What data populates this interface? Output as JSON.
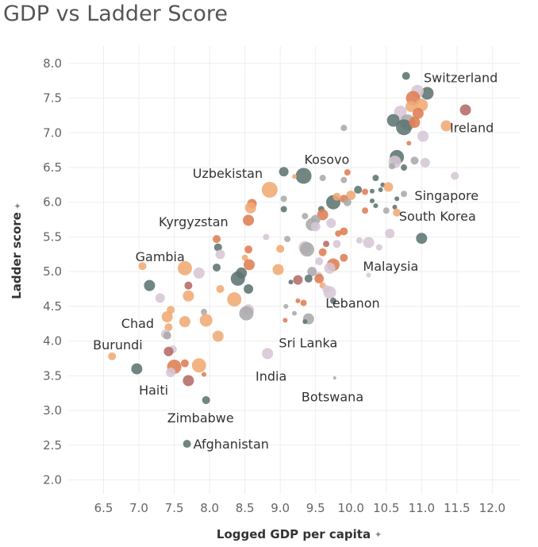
{
  "chart_data": {
    "type": "scatter",
    "title": "GDP vs Ladder Score",
    "xlabel": "Logged GDP per capita",
    "ylabel": "Ladder score",
    "xlim": [
      6.0,
      12.4
    ],
    "ylim": [
      1.8,
      8.25
    ],
    "x_ticks": [
      "6.5",
      "7.0",
      "7.5",
      "8.0",
      "8.5",
      "9.0",
      "9.5",
      "10.0",
      "10.5",
      "11.0",
      "11.5",
      "12.0"
    ],
    "y_ticks": [
      "2.0",
      "2.5",
      "3.0",
      "3.5",
      "4.0",
      "4.5",
      "5.0",
      "5.5",
      "6.0",
      "6.5",
      "7.0",
      "7.5",
      "8.0"
    ],
    "grid": true,
    "colors": {
      "teal": "#5d7472",
      "orange": "#df7d53",
      "peach": "#f0aa73",
      "lilac": "#d6c6d4",
      "grey": "#aaaaaa",
      "rose": "#b56b66"
    },
    "points": [
      {
        "x": 10.78,
        "y": 7.82,
        "s": 5,
        "c": "teal"
      },
      {
        "x": 11.08,
        "y": 7.57,
        "s": 8,
        "c": "teal"
      },
      {
        "x": 10.94,
        "y": 7.6,
        "s": 8,
        "c": "lilac"
      },
      {
        "x": 10.88,
        "y": 7.5,
        "s": 9,
        "c": "orange"
      },
      {
        "x": 10.7,
        "y": 7.3,
        "s": 8,
        "c": "lilac"
      },
      {
        "x": 11.0,
        "y": 7.4,
        "s": 8,
        "c": "peach"
      },
      {
        "x": 10.85,
        "y": 7.38,
        "s": 7,
        "c": "peach"
      },
      {
        "x": 10.95,
        "y": 7.28,
        "s": 7,
        "c": "orange"
      },
      {
        "x": 11.62,
        "y": 7.33,
        "s": 7,
        "c": "rose"
      },
      {
        "x": 10.6,
        "y": 7.18,
        "s": 8,
        "c": "teal"
      },
      {
        "x": 10.8,
        "y": 7.15,
        "s": 10,
        "c": "grey"
      },
      {
        "x": 10.75,
        "y": 7.08,
        "s": 10,
        "c": "teal"
      },
      {
        "x": 10.9,
        "y": 7.15,
        "s": 7,
        "c": "orange"
      },
      {
        "x": 11.35,
        "y": 7.1,
        "s": 7,
        "c": "peach"
      },
      {
        "x": 9.9,
        "y": 7.07,
        "s": 4,
        "c": "grey"
      },
      {
        "x": 11.02,
        "y": 6.95,
        "s": 7,
        "c": "lilac"
      },
      {
        "x": 10.82,
        "y": 6.85,
        "s": 3,
        "c": "orange"
      },
      {
        "x": 10.65,
        "y": 6.65,
        "s": 9,
        "c": "teal"
      },
      {
        "x": 10.62,
        "y": 6.58,
        "s": 8,
        "c": "lilac"
      },
      {
        "x": 10.75,
        "y": 6.5,
        "s": 4,
        "c": "teal"
      },
      {
        "x": 10.58,
        "y": 6.52,
        "s": 4,
        "c": "grey"
      },
      {
        "x": 10.9,
        "y": 6.6,
        "s": 5,
        "c": "grey"
      },
      {
        "x": 11.05,
        "y": 6.57,
        "s": 6,
        "c": "lilac"
      },
      {
        "x": 11.47,
        "y": 6.38,
        "s": 5,
        "c": "lilac"
      },
      {
        "x": 9.05,
        "y": 6.44,
        "s": 6,
        "c": "teal"
      },
      {
        "x": 9.33,
        "y": 6.38,
        "s": 10,
        "c": "teal"
      },
      {
        "x": 9.2,
        "y": 6.37,
        "s": 3,
        "c": "peach"
      },
      {
        "x": 9.6,
        "y": 6.35,
        "s": 4,
        "c": "grey"
      },
      {
        "x": 9.95,
        "y": 6.43,
        "s": 4,
        "c": "orange"
      },
      {
        "x": 10.35,
        "y": 6.35,
        "s": 4,
        "c": "teal"
      },
      {
        "x": 10.45,
        "y": 6.25,
        "s": 3,
        "c": "teal"
      },
      {
        "x": 9.9,
        "y": 6.32,
        "s": 4,
        "c": "grey"
      },
      {
        "x": 8.85,
        "y": 6.18,
        "s": 10,
        "c": "peach"
      },
      {
        "x": 10.1,
        "y": 6.18,
        "s": 5,
        "c": "teal"
      },
      {
        "x": 10.2,
        "y": 6.15,
        "s": 4,
        "c": "orange"
      },
      {
        "x": 10.3,
        "y": 6.16,
        "s": 3,
        "c": "teal"
      },
      {
        "x": 10.42,
        "y": 6.18,
        "s": 3,
        "c": "teal"
      },
      {
        "x": 10.53,
        "y": 6.22,
        "s": 6,
        "c": "peach"
      },
      {
        "x": 10.75,
        "y": 6.12,
        "s": 4,
        "c": "grey"
      },
      {
        "x": 10.0,
        "y": 6.1,
        "s": 6,
        "c": "peach"
      },
      {
        "x": 9.9,
        "y": 6.05,
        "s": 5,
        "c": "orange"
      },
      {
        "x": 9.75,
        "y": 6.0,
        "s": 9,
        "c": "teal"
      },
      {
        "x": 9.8,
        "y": 6.08,
        "s": 5,
        "c": "peach"
      },
      {
        "x": 9.95,
        "y": 6.0,
        "s": 5,
        "c": "grey"
      },
      {
        "x": 9.05,
        "y": 6.05,
        "s": 4,
        "c": "grey"
      },
      {
        "x": 10.3,
        "y": 6.02,
        "s": 3,
        "c": "teal"
      },
      {
        "x": 10.65,
        "y": 6.05,
        "s": 3,
        "c": "teal"
      },
      {
        "x": 8.6,
        "y": 5.98,
        "s": 6,
        "c": "orange"
      },
      {
        "x": 8.58,
        "y": 5.92,
        "s": 7,
        "c": "peach"
      },
      {
        "x": 10.35,
        "y": 5.95,
        "s": 3,
        "c": "teal"
      },
      {
        "x": 10.62,
        "y": 5.93,
        "s": 3,
        "c": "teal"
      },
      {
        "x": 10.2,
        "y": 5.88,
        "s": 4,
        "c": "orange"
      },
      {
        "x": 10.5,
        "y": 5.88,
        "s": 4,
        "c": "grey"
      },
      {
        "x": 10.65,
        "y": 5.85,
        "s": 5,
        "c": "peach"
      },
      {
        "x": 9.05,
        "y": 5.9,
        "s": 4,
        "c": "teal"
      },
      {
        "x": 9.58,
        "y": 5.9,
        "s": 4,
        "c": "teal"
      },
      {
        "x": 9.6,
        "y": 5.82,
        "s": 7,
        "c": "orange"
      },
      {
        "x": 9.35,
        "y": 5.8,
        "s": 4,
        "c": "grey"
      },
      {
        "x": 9.5,
        "y": 5.75,
        "s": 6,
        "c": "grey"
      },
      {
        "x": 9.45,
        "y": 5.68,
        "s": 8,
        "c": "grey"
      },
      {
        "x": 9.5,
        "y": 5.65,
        "s": 6,
        "c": "lilac"
      },
      {
        "x": 8.55,
        "y": 5.74,
        "s": 7,
        "c": "orange"
      },
      {
        "x": 9.72,
        "y": 5.7,
        "s": 6,
        "c": "lilac"
      },
      {
        "x": 9.9,
        "y": 5.58,
        "s": 5,
        "c": "orange"
      },
      {
        "x": 9.82,
        "y": 5.55,
        "s": 4,
        "c": "orange"
      },
      {
        "x": 10.55,
        "y": 5.55,
        "s": 6,
        "c": "lilac"
      },
      {
        "x": 11.0,
        "y": 5.48,
        "s": 7,
        "c": "teal"
      },
      {
        "x": 8.1,
        "y": 5.47,
        "s": 5,
        "c": "orange"
      },
      {
        "x": 8.8,
        "y": 5.5,
        "s": 4,
        "c": "lilac"
      },
      {
        "x": 9.1,
        "y": 5.47,
        "s": 4,
        "c": "grey"
      },
      {
        "x": 9.65,
        "y": 5.4,
        "s": 4,
        "c": "rose"
      },
      {
        "x": 9.8,
        "y": 5.4,
        "s": 5,
        "c": "lilac"
      },
      {
        "x": 10.12,
        "y": 5.45,
        "s": 4,
        "c": "lilac"
      },
      {
        "x": 10.25,
        "y": 5.42,
        "s": 7,
        "c": "lilac"
      },
      {
        "x": 10.4,
        "y": 5.35,
        "s": 4,
        "c": "lilac"
      },
      {
        "x": 8.12,
        "y": 5.35,
        "s": 5,
        "c": "teal"
      },
      {
        "x": 8.55,
        "y": 5.32,
        "s": 5,
        "c": "orange"
      },
      {
        "x": 9.0,
        "y": 5.33,
        "s": 5,
        "c": "peach"
      },
      {
        "x": 9.35,
        "y": 5.35,
        "s": 8,
        "c": "lilac"
      },
      {
        "x": 9.38,
        "y": 5.32,
        "s": 9,
        "c": "grey"
      },
      {
        "x": 9.6,
        "y": 5.28,
        "s": 5,
        "c": "orange"
      },
      {
        "x": 9.9,
        "y": 5.2,
        "s": 5,
        "c": "orange"
      },
      {
        "x": 8.15,
        "y": 5.25,
        "s": 6,
        "c": "lilac"
      },
      {
        "x": 8.5,
        "y": 5.2,
        "s": 4,
        "c": "peach"
      },
      {
        "x": 9.55,
        "y": 5.15,
        "s": 5,
        "c": "lilac"
      },
      {
        "x": 9.75,
        "y": 5.1,
        "s": 8,
        "c": "orange"
      },
      {
        "x": 9.7,
        "y": 5.05,
        "s": 7,
        "c": "lilac"
      },
      {
        "x": 8.56,
        "y": 5.1,
        "s": 7,
        "c": "orange"
      },
      {
        "x": 8.1,
        "y": 5.06,
        "s": 5,
        "c": "teal"
      },
      {
        "x": 7.05,
        "y": 5.08,
        "s": 5,
        "c": "peach"
      },
      {
        "x": 7.65,
        "y": 5.05,
        "s": 9,
        "c": "peach"
      },
      {
        "x": 7.85,
        "y": 4.98,
        "s": 7,
        "c": "lilac"
      },
      {
        "x": 8.45,
        "y": 4.98,
        "s": 7,
        "c": "teal"
      },
      {
        "x": 8.97,
        "y": 5.03,
        "s": 7,
        "c": "peach"
      },
      {
        "x": 9.45,
        "y": 5.0,
        "s": 6,
        "c": "grey"
      },
      {
        "x": 9.55,
        "y": 4.95,
        "s": 4,
        "c": "lilac"
      },
      {
        "x": 10.25,
        "y": 4.95,
        "s": 3,
        "c": "lilac"
      },
      {
        "x": 8.4,
        "y": 4.9,
        "s": 9,
        "c": "teal"
      },
      {
        "x": 9.4,
        "y": 4.9,
        "s": 5,
        "c": "teal"
      },
      {
        "x": 9.55,
        "y": 4.9,
        "s": 6,
        "c": "orange"
      },
      {
        "x": 9.25,
        "y": 4.88,
        "s": 6,
        "c": "rose"
      },
      {
        "x": 9.15,
        "y": 4.85,
        "s": 3,
        "c": "teal"
      },
      {
        "x": 7.15,
        "y": 4.8,
        "s": 7,
        "c": "teal"
      },
      {
        "x": 7.7,
        "y": 4.8,
        "s": 5,
        "c": "rose"
      },
      {
        "x": 8.15,
        "y": 4.75,
        "s": 5,
        "c": "peach"
      },
      {
        "x": 8.55,
        "y": 4.75,
        "s": 6,
        "c": "teal"
      },
      {
        "x": 9.6,
        "y": 4.8,
        "s": 4,
        "c": "peach"
      },
      {
        "x": 9.65,
        "y": 4.75,
        "s": 5,
        "c": "lilac"
      },
      {
        "x": 9.7,
        "y": 4.7,
        "s": 8,
        "c": "lilac"
      },
      {
        "x": 7.3,
        "y": 4.62,
        "s": 6,
        "c": "lilac"
      },
      {
        "x": 7.7,
        "y": 4.65,
        "s": 7,
        "c": "peach"
      },
      {
        "x": 8.35,
        "y": 4.6,
        "s": 9,
        "c": "peach"
      },
      {
        "x": 9.75,
        "y": 4.58,
        "s": 4,
        "c": "teal"
      },
      {
        "x": 9.25,
        "y": 4.58,
        "s": 3,
        "c": "orange"
      },
      {
        "x": 9.33,
        "y": 4.55,
        "s": 4,
        "c": "orange"
      },
      {
        "x": 9.08,
        "y": 4.5,
        "s": 3,
        "c": "grey"
      },
      {
        "x": 7.45,
        "y": 4.45,
        "s": 5,
        "c": "peach"
      },
      {
        "x": 7.92,
        "y": 4.42,
        "s": 4,
        "c": "grey"
      },
      {
        "x": 8.55,
        "y": 4.45,
        "s": 7,
        "c": "lilac"
      },
      {
        "x": 8.52,
        "y": 4.4,
        "s": 9,
        "c": "grey"
      },
      {
        "x": 9.2,
        "y": 4.4,
        "s": 3,
        "c": "grey"
      },
      {
        "x": 7.4,
        "y": 4.35,
        "s": 7,
        "c": "peach"
      },
      {
        "x": 7.95,
        "y": 4.3,
        "s": 8,
        "c": "peach"
      },
      {
        "x": 9.4,
        "y": 4.32,
        "s": 7,
        "c": "grey"
      },
      {
        "x": 9.07,
        "y": 4.3,
        "s": 3,
        "c": "orange"
      },
      {
        "x": 9.35,
        "y": 4.28,
        "s": 3,
        "c": "teal"
      },
      {
        "x": 7.65,
        "y": 4.28,
        "s": 7,
        "c": "peach"
      },
      {
        "x": 7.42,
        "y": 4.2,
        "s": 5,
        "c": "peach"
      },
      {
        "x": 7.38,
        "y": 4.1,
        "s": 6,
        "c": "lilac"
      },
      {
        "x": 7.4,
        "y": 4.08,
        "s": 5,
        "c": "grey"
      },
      {
        "x": 8.12,
        "y": 4.07,
        "s": 7,
        "c": "peach"
      },
      {
        "x": 7.48,
        "y": 3.88,
        "s": 5,
        "c": "lilac"
      },
      {
        "x": 7.42,
        "y": 3.85,
        "s": 6,
        "c": "rose"
      },
      {
        "x": 8.82,
        "y": 3.82,
        "s": 7,
        "c": "lilac"
      },
      {
        "x": 6.62,
        "y": 3.78,
        "s": 5,
        "c": "peach"
      },
      {
        "x": 7.5,
        "y": 3.63,
        "s": 9,
        "c": "orange"
      },
      {
        "x": 7.65,
        "y": 3.68,
        "s": 5,
        "c": "orange"
      },
      {
        "x": 7.85,
        "y": 3.65,
        "s": 9,
        "c": "peach"
      },
      {
        "x": 7.45,
        "y": 3.55,
        "s": 6,
        "c": "lilac"
      },
      {
        "x": 6.97,
        "y": 3.6,
        "s": 7,
        "c": "teal"
      },
      {
        "x": 7.92,
        "y": 3.52,
        "s": 3,
        "c": "orange"
      },
      {
        "x": 7.7,
        "y": 3.43,
        "s": 7,
        "c": "rose"
      },
      {
        "x": 9.77,
        "y": 3.47,
        "s": 2,
        "c": "grey"
      },
      {
        "x": 7.95,
        "y": 3.15,
        "s": 5,
        "c": "teal"
      },
      {
        "x": 7.68,
        "y": 2.52,
        "s": 5,
        "c": "teal"
      }
    ],
    "annotations": [
      {
        "text": "Switzerland",
        "x": 11.03,
        "y": 7.8
      },
      {
        "text": "Ireland",
        "x": 11.4,
        "y": 7.08
      },
      {
        "text": "Kosovo",
        "x": 9.34,
        "y": 6.62
      },
      {
        "text": "Uzbekistan",
        "x": 7.76,
        "y": 6.42
      },
      {
        "text": "Singapore",
        "x": 10.9,
        "y": 6.1
      },
      {
        "text": "South Korea",
        "x": 10.68,
        "y": 5.8
      },
      {
        "text": "Kyrgyzstan",
        "x": 7.28,
        "y": 5.72
      },
      {
        "text": "Gambia",
        "x": 6.95,
        "y": 5.22
      },
      {
        "text": "Malaysia",
        "x": 10.17,
        "y": 5.08
      },
      {
        "text": "Lebanon",
        "x": 9.64,
        "y": 4.55
      },
      {
        "text": "Chad",
        "x": 6.75,
        "y": 4.26
      },
      {
        "text": "Sri Lanka",
        "x": 8.98,
        "y": 3.98
      },
      {
        "text": "Burundi",
        "x": 6.35,
        "y": 3.95
      },
      {
        "text": "India",
        "x": 8.65,
        "y": 3.5
      },
      {
        "text": "Botswana",
        "x": 9.3,
        "y": 3.2
      },
      {
        "text": "Haiti",
        "x": 7.0,
        "y": 3.3
      },
      {
        "text": "Zimbabwe",
        "x": 7.4,
        "y": 2.9
      },
      {
        "text": "Afghanistan",
        "x": 7.77,
        "y": 2.52
      }
    ]
  }
}
